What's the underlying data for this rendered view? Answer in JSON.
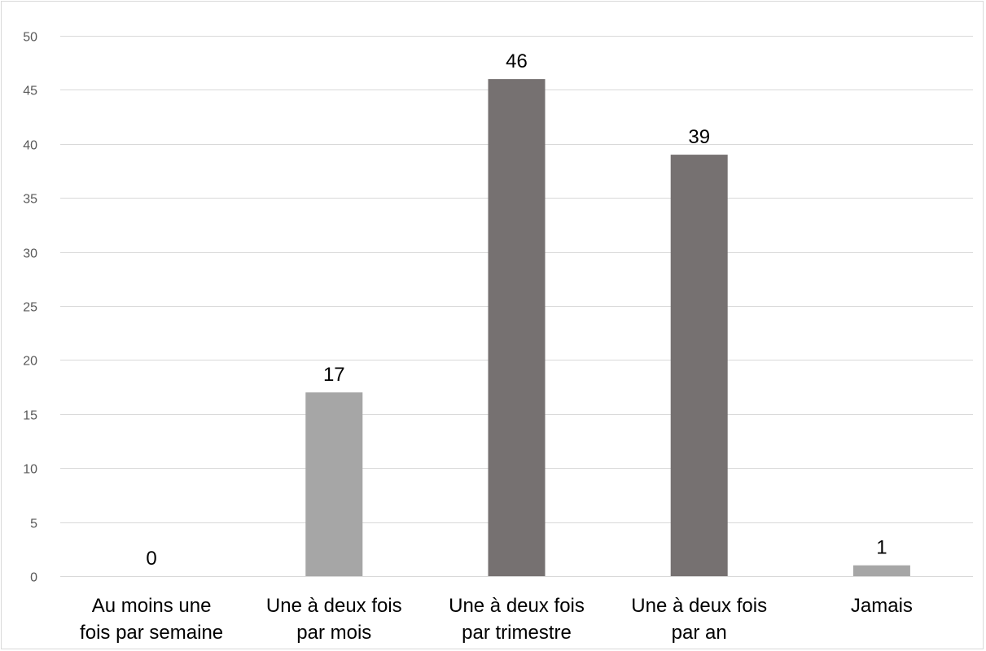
{
  "chart_data": {
    "type": "bar",
    "categories": [
      [
        "Au moins une",
        "fois par semaine"
      ],
      [
        "Une à deux fois",
        "par mois"
      ],
      [
        "Une à deux fois",
        "par trimestre"
      ],
      [
        "Une à deux fois",
        "par an"
      ],
      [
        "Jamais"
      ]
    ],
    "values": [
      0,
      17,
      46,
      39,
      1
    ],
    "bar_colors": [
      "#a6a6a6",
      "#a6a6a6",
      "#767171",
      "#767171",
      "#a6a6a6"
    ],
    "ylim": [
      0,
      50
    ],
    "yticks": [
      0,
      5,
      10,
      15,
      20,
      25,
      30,
      35,
      40,
      45,
      50
    ],
    "grid": true,
    "title": "",
    "xlabel": "",
    "ylabel": ""
  }
}
